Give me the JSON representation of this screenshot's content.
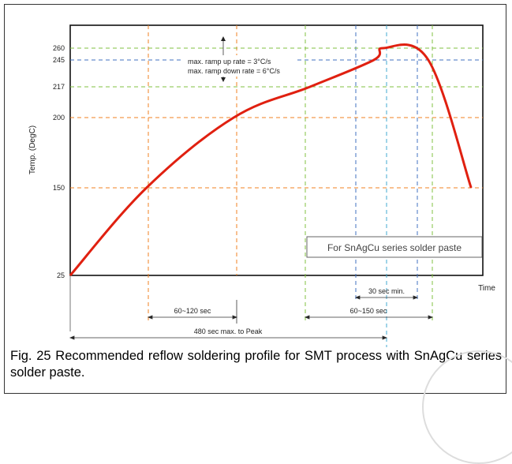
{
  "chart_data": {
    "type": "line",
    "title": "",
    "xlabel": "Time",
    "ylabel": "Temp. (DegC)",
    "y_ticks": [
      "25",
      "150",
      "200",
      "217",
      "245",
      "260"
    ],
    "ylim": [
      25,
      268
    ],
    "grid": "dashed reference lines",
    "series": [
      {
        "x": [
          0,
          98,
          210,
          308,
          390,
          402,
          460,
          515
        ],
        "y": [
          25,
          150,
          200,
          217,
          245,
          260,
          245,
          150
        ]
      }
    ],
    "annotations": {
      "ramp_up": "max. ramp up rate = 3°C/s",
      "ramp_down": "max. ramp down rate = 6°C/s",
      "legend_box": "For SnAgCu series solder paste",
      "span_60_120": "60~120 sec",
      "span_30": "30 sec min.",
      "span_60_150": "60~150 sec",
      "span_480": "480 sec max. to Peak"
    },
    "colors": {
      "curve": "#e02010",
      "orange": "#f08020",
      "green": "#80c040",
      "blue": "#4070c0",
      "cyan": "#40a8d0"
    }
  },
  "caption": "Fig. 25 Recommended reflow soldering profile for SMT process with SnAgCu series solder paste."
}
